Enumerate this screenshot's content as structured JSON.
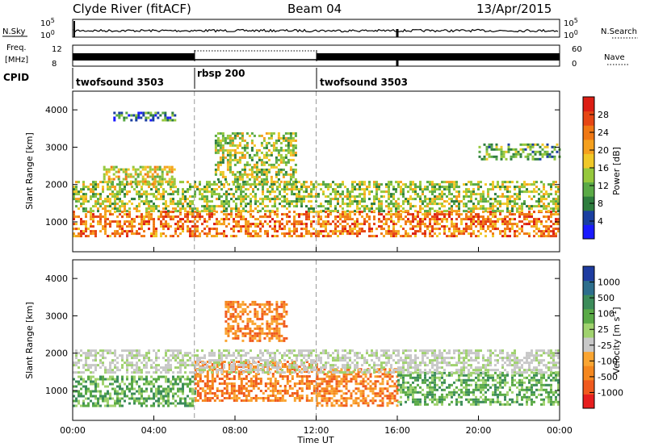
{
  "header": {
    "station": "Clyde River (fitACF)",
    "beam": "Beam 04",
    "date": "13/Apr/2015"
  },
  "noise_panel": {
    "left_label": "N.Sky",
    "right_label": "N.Search",
    "left_ticks": [
      "10^5",
      "10^0"
    ],
    "right_ticks": [
      "10^5",
      "10^0"
    ]
  },
  "freq_panel": {
    "left_label_1": "Freq.",
    "left_label_2": "[MHz]",
    "right_label": "Nave",
    "left_ticks": [
      "12",
      "8"
    ],
    "right_ticks": [
      "60",
      "0"
    ]
  },
  "cpid": {
    "label": "CPID",
    "segments": [
      {
        "name": "twofsound 3503",
        "start_hour": 0,
        "end_hour": 6
      },
      {
        "name": "rbsp 200",
        "start_hour": 6,
        "end_hour": 12
      },
      {
        "name": "twofsound 3503",
        "start_hour": 12,
        "end_hour": 24
      }
    ]
  },
  "x_axis": {
    "label": "Time UT",
    "ticks": [
      "00:00",
      "04:00",
      "08:00",
      "12:00",
      "16:00",
      "20:00",
      "00:00"
    ]
  },
  "colors": {
    "power": [
      "#1a1aff",
      "#1a3fa0",
      "#2e7d3e",
      "#5aaa46",
      "#96c83c",
      "#f0c828",
      "#f5a01e",
      "#f07814",
      "#e64614",
      "#dc1e14"
    ],
    "velocity": [
      "#e61e1e",
      "#f05a1e",
      "#f5871e",
      "#faa532",
      "#c8c8c8",
      "#a0d26e",
      "#5aaa46",
      "#3c8c5a",
      "#2d6e8c",
      "#1e3ca0"
    ]
  },
  "chart_data": [
    {
      "type": "heatmap",
      "title": "Power",
      "ylabel": "Slant Range [km]",
      "xlabel": "Time UT",
      "ylim": [
        200,
        4500
      ],
      "yticks": [
        1000,
        2000,
        3000,
        4000
      ],
      "xlim_hours": [
        0,
        24
      ],
      "colorbar": {
        "label": "Power [dB]",
        "ticks": [
          "4",
          "8",
          "12",
          "16",
          "20",
          "24",
          "28"
        ],
        "range": [
          0,
          32
        ]
      },
      "program_changes_hours": [
        6,
        12
      ],
      "echo_regions": [
        {
          "t0": 0,
          "t1": 24,
          "r0": 600,
          "r1": 1300,
          "level": 24
        },
        {
          "t0": 0,
          "t1": 24,
          "r0": 1300,
          "r1": 2100,
          "level": 14
        },
        {
          "t0": 1.5,
          "t1": 5,
          "r0": 2000,
          "r1": 2500,
          "level": 18
        },
        {
          "t0": 2,
          "t1": 5,
          "r0": 3700,
          "r1": 3950,
          "level": 8
        },
        {
          "t0": 7,
          "t1": 11,
          "r0": 2000,
          "r1": 3400,
          "level": 14
        },
        {
          "t0": 20,
          "t1": 24,
          "r0": 2700,
          "r1": 3100,
          "level": 10
        }
      ]
    },
    {
      "type": "heatmap",
      "title": "Velocity",
      "ylabel": "Slant Range [km]",
      "xlabel": "Time UT",
      "ylim": [
        200,
        4500
      ],
      "yticks": [
        1000,
        2000,
        3000,
        4000
      ],
      "xlim_hours": [
        0,
        24
      ],
      "colorbar": {
        "label": "Velocity [m s^-1]",
        "ticks": [
          "1000",
          "500",
          "100",
          "25",
          "-25",
          "-100",
          "-500",
          "-1000"
        ]
      },
      "program_changes_hours": [
        6,
        12
      ],
      "echo_regions": [
        {
          "t0": 0,
          "t1": 6,
          "r0": 600,
          "r1": 1400,
          "level": "green"
        },
        {
          "t0": 6,
          "t1": 12,
          "r0": 700,
          "r1": 1800,
          "level": "orange"
        },
        {
          "t0": 12,
          "t1": 16,
          "r0": 600,
          "r1": 1600,
          "level": "orange"
        },
        {
          "t0": 16,
          "t1": 24,
          "r0": 600,
          "r1": 1500,
          "level": "green"
        },
        {
          "t0": 0,
          "t1": 24,
          "r0": 1500,
          "r1": 2100,
          "level": "grey"
        },
        {
          "t0": 7.5,
          "t1": 10.5,
          "r0": 2300,
          "r1": 3400,
          "level": "orange"
        }
      ]
    }
  ]
}
